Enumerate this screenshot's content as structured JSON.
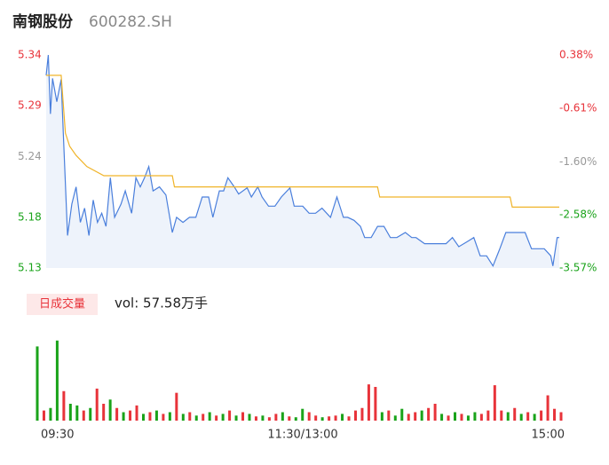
{
  "header": {
    "name": "南钢股份",
    "code": "600282.SH"
  },
  "chart_data": [
    {
      "type": "line",
      "xlim": [
        0,
        240
      ],
      "xticks": [
        {
          "value": 0,
          "label": "09:30"
        },
        {
          "value": 120,
          "label": "11:30/13:00"
        },
        {
          "value": 240,
          "label": "15:00"
        }
      ],
      "ylim": [
        5.13,
        5.34
      ],
      "yticks": [
        5.13,
        5.18,
        5.24,
        5.29,
        5.34
      ],
      "ytick_colors": [
        "#1aa31a",
        "#1aa31a",
        "#999999",
        "#e8333a",
        "#e8333a"
      ],
      "y2lim": [
        -3.57,
        0.38
      ],
      "y2ticks": [
        {
          "value": -3.57,
          "label": "-3.57%"
        },
        {
          "value": -2.58,
          "label": "-2.58%"
        },
        {
          "value": -1.6,
          "label": "-1.60%"
        },
        {
          "value": -0.61,
          "label": "-0.61%"
        },
        {
          "value": 0.38,
          "label": "0.38%"
        }
      ],
      "area_color": "#eef3fb",
      "series": [
        {
          "color": "#4a7fdc",
          "x": [
            0,
            1,
            2,
            3,
            5,
            7,
            8,
            10,
            12,
            14,
            16,
            18,
            20,
            22,
            24,
            26,
            28,
            30,
            32,
            35,
            37,
            40,
            42,
            44,
            46,
            48,
            50,
            53,
            56,
            59,
            61,
            64,
            67,
            70,
            73,
            76,
            78,
            81,
            83,
            85,
            88,
            90,
            94,
            96,
            99,
            101,
            104,
            107,
            110,
            114,
            116,
            120,
            123,
            126,
            129,
            133,
            136,
            139,
            141,
            144,
            147,
            149,
            152,
            155,
            158,
            161,
            164,
            168,
            171,
            173,
            177,
            180,
            183,
            187,
            190,
            193,
            197,
            200,
            203,
            206,
            209,
            212,
            215,
            217,
            221,
            224,
            227,
            230,
            233,
            236,
            237,
            239,
            240
          ],
          "values": [
            5.32,
            5.34,
            5.282,
            5.317,
            5.294,
            5.316,
            5.263,
            5.162,
            5.193,
            5.21,
            5.175,
            5.189,
            5.162,
            5.197,
            5.175,
            5.184,
            5.171,
            5.219,
            5.18,
            5.193,
            5.206,
            5.184,
            5.219,
            5.21,
            5.219,
            5.23,
            5.206,
            5.21,
            5.202,
            5.165,
            5.18,
            5.175,
            5.18,
            5.18,
            5.2,
            5.2,
            5.18,
            5.206,
            5.206,
            5.219,
            5.21,
            5.203,
            5.209,
            5.2,
            5.21,
            5.2,
            5.191,
            5.191,
            5.2,
            5.209,
            5.191,
            5.191,
            5.184,
            5.184,
            5.189,
            5.18,
            5.2,
            5.18,
            5.18,
            5.177,
            5.171,
            5.16,
            5.16,
            5.171,
            5.171,
            5.16,
            5.16,
            5.165,
            5.16,
            5.16,
            5.154,
            5.154,
            5.154,
            5.154,
            5.16,
            5.151,
            5.156,
            5.16,
            5.142,
            5.142,
            5.132,
            5.148,
            5.165,
            5.165,
            5.165,
            5.165,
            5.149,
            5.149,
            5.149,
            5.142,
            5.132,
            5.16,
            5.16
          ]
        },
        {
          "color": "#f0b429",
          "x": [
            0,
            7,
            9,
            11,
            14,
            19,
            27,
            59,
            60,
            155,
            156,
            217,
            218,
            240
          ],
          "values": [
            5.32,
            5.32,
            5.263,
            5.25,
            5.241,
            5.23,
            5.221,
            5.221,
            5.21,
            5.21,
            5.2,
            5.2,
            5.19,
            5.19
          ]
        }
      ]
    },
    {
      "type": "bar",
      "title": "日成交量",
      "subtitle": "vol: 57.58万手",
      "ylim": [
        0,
        100
      ],
      "values": [
        88,
        12,
        15,
        95,
        35,
        20,
        18,
        12,
        15,
        38,
        20,
        25,
        15,
        10,
        12,
        18,
        8,
        10,
        12,
        8,
        10,
        33,
        8,
        10,
        6,
        8,
        10,
        6,
        8,
        12,
        6,
        10,
        8,
        5,
        6,
        4,
        8,
        10,
        5,
        4,
        14,
        10,
        6,
        4,
        5,
        6,
        8,
        5,
        12,
        15,
        43,
        40,
        10,
        12,
        6,
        14,
        8,
        10,
        12,
        15,
        20,
        8,
        6,
        10,
        8,
        6,
        10,
        8,
        12,
        42,
        12,
        10,
        15,
        8,
        10,
        8,
        12,
        30,
        14,
        10
      ],
      "colors": [
        "#1aa31a",
        "#e8333a",
        "#1aa31a",
        "#1aa31a",
        "#e8333a",
        "#1aa31a",
        "#1aa31a",
        "#e8333a",
        "#1aa31a",
        "#e8333a",
        "#e8333a",
        "#1aa31a",
        "#e8333a",
        "#1aa31a",
        "#e8333a",
        "#e8333a",
        "#1aa31a",
        "#e8333a",
        "#1aa31a",
        "#e8333a",
        "#1aa31a",
        "#e8333a",
        "#1aa31a",
        "#e8333a",
        "#1aa31a",
        "#e8333a",
        "#1aa31a",
        "#e8333a",
        "#1aa31a",
        "#e8333a",
        "#1aa31a",
        "#e8333a",
        "#1aa31a",
        "#e8333a",
        "#1aa31a",
        "#e8333a",
        "#e8333a",
        "#1aa31a",
        "#e8333a",
        "#1aa31a",
        "#1aa31a",
        "#e8333a",
        "#e8333a",
        "#1aa31a",
        "#e8333a",
        "#e8333a",
        "#1aa31a",
        "#e8333a",
        "#e8333a",
        "#e8333a",
        "#e8333a",
        "#e8333a",
        "#1aa31a",
        "#e8333a",
        "#1aa31a",
        "#1aa31a",
        "#e8333a",
        "#e8333a",
        "#1aa31a",
        "#e8333a",
        "#e8333a",
        "#1aa31a",
        "#e8333a",
        "#1aa31a",
        "#e8333a",
        "#1aa31a",
        "#1aa31a",
        "#e8333a",
        "#e8333a",
        "#e8333a",
        "#e8333a",
        "#1aa31a",
        "#e8333a",
        "#1aa31a",
        "#e8333a",
        "#1aa31a",
        "#e8333a",
        "#e8333a",
        "#e8333a",
        "#e8333a"
      ]
    }
  ]
}
